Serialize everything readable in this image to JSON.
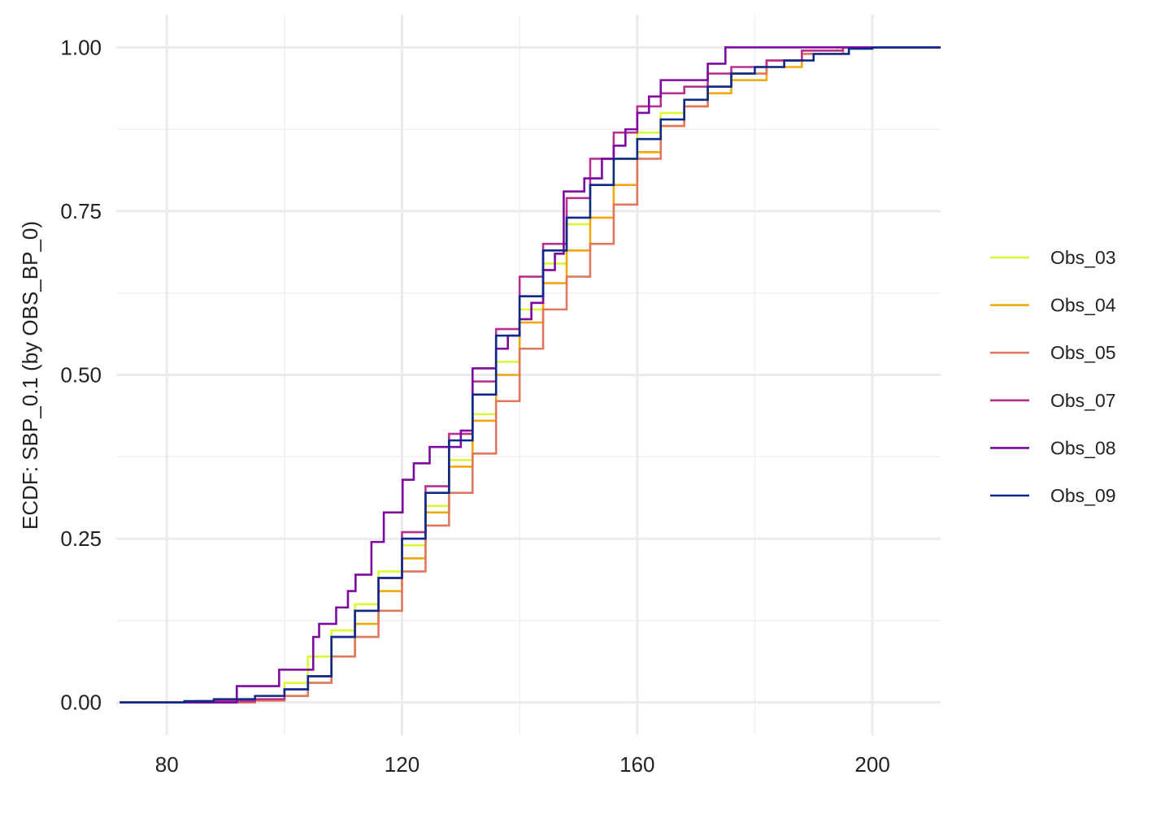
{
  "chart_data": {
    "type": "ecdf",
    "y_label": "ECDF: SBP_0.1 (by OBS_BP_0)",
    "xlim": [
      71.4,
      211.6
    ],
    "ylim": [
      -0.05,
      1.05
    ],
    "xticks": [
      80,
      120,
      160,
      200
    ],
    "yticks": [
      {
        "value": 0,
        "label": "0.00"
      },
      {
        "value": 0.25,
        "label": "0.25"
      },
      {
        "value": 0.5,
        "label": "0.50"
      },
      {
        "value": 0.75,
        "label": "0.75"
      },
      {
        "value": 1,
        "label": "1.00"
      }
    ],
    "grid": true,
    "minor_grid": true,
    "legend": "right",
    "series": [
      {
        "name": "Obs_03",
        "color": "#dcf734",
        "x": [
          72,
          95,
          100,
          104,
          108,
          112,
          116,
          120,
          124,
          128,
          132,
          136,
          140,
          144,
          148,
          152,
          156,
          160,
          164,
          168,
          172,
          176,
          182,
          188,
          194
        ],
        "values": [
          0,
          0.005,
          0.03,
          0.07,
          0.11,
          0.15,
          0.2,
          0.24,
          0.3,
          0.37,
          0.44,
          0.52,
          0.6,
          0.67,
          0.73,
          0.79,
          0.83,
          0.87,
          0.9,
          0.92,
          0.94,
          0.96,
          0.98,
          0.995,
          1
        ]
      },
      {
        "name": "Obs_04",
        "color": "#f0a80f",
        "x": [
          72,
          95,
          100,
          104,
          108,
          112,
          116,
          120,
          124,
          128,
          132,
          136,
          140,
          144,
          148,
          152,
          156,
          160,
          164,
          168,
          172,
          176,
          182,
          188,
          195
        ],
        "values": [
          0,
          0.003,
          0.01,
          0.03,
          0.07,
          0.12,
          0.17,
          0.22,
          0.29,
          0.36,
          0.43,
          0.5,
          0.58,
          0.64,
          0.69,
          0.74,
          0.79,
          0.84,
          0.88,
          0.91,
          0.93,
          0.95,
          0.97,
          0.99,
          1
        ]
      },
      {
        "name": "Obs_05",
        "color": "#e07860",
        "x": [
          72,
          95,
          100,
          104,
          108,
          112,
          116,
          120,
          124,
          128,
          132,
          136,
          140,
          144,
          148,
          152,
          156,
          160,
          164,
          168,
          172,
          176,
          182,
          188,
          196
        ],
        "values": [
          0,
          0.003,
          0.01,
          0.03,
          0.07,
          0.1,
          0.14,
          0.2,
          0.27,
          0.32,
          0.38,
          0.46,
          0.54,
          0.6,
          0.65,
          0.7,
          0.76,
          0.83,
          0.88,
          0.91,
          0.94,
          0.96,
          0.98,
          0.99,
          1
        ]
      },
      {
        "name": "Obs_07",
        "color": "#b8318f",
        "x": [
          72,
          85,
          95,
          100,
          104,
          108,
          112,
          116,
          120,
          124,
          128,
          132,
          136,
          140,
          144,
          148,
          152,
          156,
          160,
          164,
          168,
          172,
          176,
          182,
          188,
          195
        ],
        "values": [
          0,
          0.002,
          0.005,
          0.02,
          0.04,
          0.1,
          0.14,
          0.19,
          0.26,
          0.33,
          0.41,
          0.49,
          0.57,
          0.65,
          0.7,
          0.77,
          0.83,
          0.87,
          0.91,
          0.93,
          0.94,
          0.96,
          0.97,
          0.98,
          0.995,
          1
        ]
      },
      {
        "name": "Obs_08",
        "color": "#7d0aa0",
        "x": [
          72,
          91.9,
          99.1,
          104.9,
          105.9,
          108.8,
          110.8,
          112.1,
          114.8,
          116.9,
          120.1,
          122,
          124.7,
          130,
          132,
          136,
          138,
          140,
          142,
          144,
          146,
          147.5,
          151,
          154,
          156,
          158,
          160,
          162,
          164,
          172,
          175
        ],
        "values": [
          0,
          0.025,
          0.05,
          0.1,
          0.12,
          0.145,
          0.17,
          0.195,
          0.245,
          0.29,
          0.34,
          0.365,
          0.39,
          0.415,
          0.51,
          0.54,
          0.56,
          0.585,
          0.61,
          0.66,
          0.685,
          0.78,
          0.8,
          0.83,
          0.85,
          0.875,
          0.9,
          0.925,
          0.95,
          0.975,
          1
        ]
      },
      {
        "name": "Obs_09",
        "color": "#0d2a8a",
        "x": [
          72,
          83,
          88,
          95,
          100,
          104,
          108,
          112,
          116,
          120,
          124,
          128,
          132,
          136,
          140,
          144,
          148,
          152,
          156,
          160,
          164,
          168,
          172,
          176,
          180,
          185,
          190,
          196,
          200
        ],
        "values": [
          0,
          0.002,
          0.005,
          0.01,
          0.02,
          0.04,
          0.1,
          0.14,
          0.19,
          0.25,
          0.32,
          0.4,
          0.47,
          0.56,
          0.62,
          0.69,
          0.74,
          0.79,
          0.83,
          0.86,
          0.89,
          0.92,
          0.94,
          0.96,
          0.97,
          0.98,
          0.99,
          0.998,
          1
        ]
      }
    ]
  }
}
